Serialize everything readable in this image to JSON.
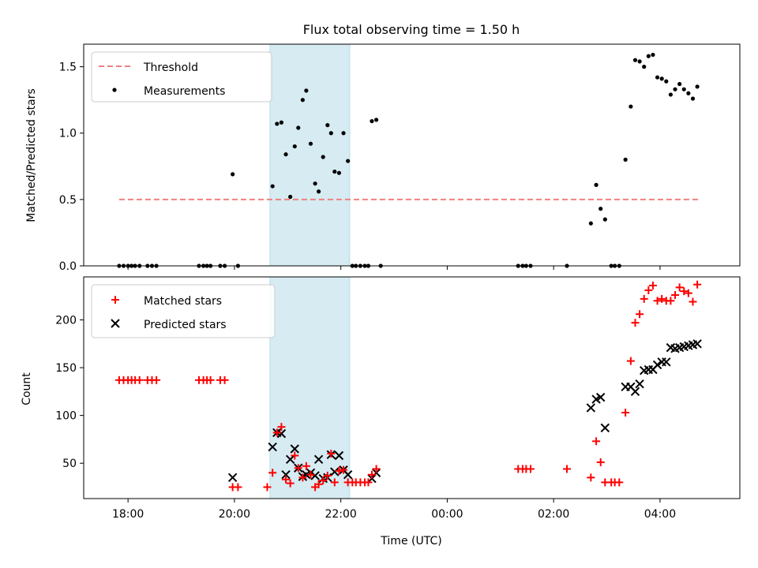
{
  "figure": {
    "title": "Flux total observing time = 1.50 h"
  },
  "chart_data": [
    {
      "type": "scatter",
      "ylabel": "Matched/Predicted stars",
      "xlabel": "",
      "xlim": [
        "17:10",
        "05:30"
      ],
      "ylim": [
        0,
        1.67
      ],
      "yticks": [
        "0.0",
        "0.5",
        "1.0",
        "1.5"
      ],
      "ytick_values": [
        0,
        0.5,
        1.0,
        1.5
      ],
      "grid": false,
      "legend_position": "upper-left",
      "shaded_span": {
        "x_start": "20:40",
        "x_end": "22:10",
        "color": "#add8e6"
      },
      "threshold": {
        "name": "Threshold",
        "value": 0.5,
        "x_start": "17:50",
        "x_end": "04:45",
        "color": "#f08080",
        "style": "dashed"
      },
      "measurements": {
        "name": "Measurements",
        "color": "#000000",
        "points": [
          [
            "17:50",
            0
          ],
          [
            "17:55",
            0
          ],
          [
            "18:00",
            0
          ],
          [
            "18:04",
            0
          ],
          [
            "18:08",
            0
          ],
          [
            "18:13",
            0
          ],
          [
            "18:22",
            0
          ],
          [
            "18:27",
            0
          ],
          [
            "18:32",
            0
          ],
          [
            "19:20",
            0
          ],
          [
            "19:25",
            0
          ],
          [
            "19:29",
            0
          ],
          [
            "19:33",
            0
          ],
          [
            "19:44",
            0
          ],
          [
            "19:49",
            0
          ],
          [
            "19:58",
            0.69
          ],
          [
            "20:04",
            0
          ],
          [
            "20:43",
            0.6
          ],
          [
            "20:48",
            1.07
          ],
          [
            "20:53",
            1.08
          ],
          [
            "20:58",
            0.84
          ],
          [
            "21:03",
            0.52
          ],
          [
            "21:08",
            0.9
          ],
          [
            "21:12",
            1.04
          ],
          [
            "21:17",
            1.25
          ],
          [
            "21:21",
            1.32
          ],
          [
            "21:26",
            0.92
          ],
          [
            "21:31",
            0.62
          ],
          [
            "21:35",
            0.56
          ],
          [
            "21:40",
            0.82
          ],
          [
            "21:45",
            1.06
          ],
          [
            "21:49",
            1.0
          ],
          [
            "21:53",
            0.71
          ],
          [
            "21:58",
            0.7
          ],
          [
            "22:03",
            1.0
          ],
          [
            "22:08",
            0.79
          ],
          [
            "22:13",
            0
          ],
          [
            "22:17",
            0
          ],
          [
            "22:22",
            0
          ],
          [
            "22:27",
            0
          ],
          [
            "22:31",
            0
          ],
          [
            "22:35",
            1.09
          ],
          [
            "22:40",
            1.1
          ],
          [
            "22:45",
            0
          ],
          [
            "01:20",
            0
          ],
          [
            "01:25",
            0
          ],
          [
            "01:29",
            0
          ],
          [
            "01:34",
            0
          ],
          [
            "02:15",
            0
          ],
          [
            "02:42",
            0.32
          ],
          [
            "02:48",
            0.61
          ],
          [
            "02:53",
            0.43
          ],
          [
            "02:58",
            0.35
          ],
          [
            "03:05",
            0
          ],
          [
            "03:09",
            0
          ],
          [
            "03:14",
            0
          ],
          [
            "03:21",
            0.8
          ],
          [
            "03:27",
            1.2
          ],
          [
            "03:32",
            1.55
          ],
          [
            "03:37",
            1.54
          ],
          [
            "03:42",
            1.5
          ],
          [
            "03:47",
            1.58
          ],
          [
            "03:52",
            1.59
          ],
          [
            "03:57",
            1.42
          ],
          [
            "04:02",
            1.41
          ],
          [
            "04:07",
            1.39
          ],
          [
            "04:12",
            1.29
          ],
          [
            "04:17",
            1.33
          ],
          [
            "04:22",
            1.37
          ],
          [
            "04:27",
            1.33
          ],
          [
            "04:32",
            1.3
          ],
          [
            "04:37",
            1.26
          ],
          [
            "04:42",
            1.35
          ]
        ]
      }
    },
    {
      "type": "scatter",
      "ylabel": "Count",
      "xlabel": "Time (UTC)",
      "xlim": [
        "17:10",
        "05:30"
      ],
      "ylim": [
        13,
        245
      ],
      "xticks": [
        "18:00",
        "20:00",
        "22:00",
        "00:00",
        "02:00",
        "04:00"
      ],
      "yticks": [
        "50",
        "100",
        "150",
        "200"
      ],
      "ytick_values": [
        50,
        100,
        150,
        200
      ],
      "grid": false,
      "legend_position": "upper-left",
      "shaded_span": {
        "x_start": "20:40",
        "x_end": "22:10",
        "color": "#add8e6"
      },
      "series": [
        {
          "name": "Matched stars",
          "marker": "plus",
          "color": "#ff0000",
          "points": [
            [
              "17:50",
              137
            ],
            [
              "17:55",
              137
            ],
            [
              "18:00",
              137
            ],
            [
              "18:04",
              137
            ],
            [
              "18:08",
              137
            ],
            [
              "18:13",
              137
            ],
            [
              "18:22",
              137
            ],
            [
              "18:27",
              137
            ],
            [
              "18:32",
              137
            ],
            [
              "19:20",
              137
            ],
            [
              "19:25",
              137
            ],
            [
              "19:29",
              137
            ],
            [
              "19:33",
              137
            ],
            [
              "19:44",
              137
            ],
            [
              "19:49",
              137
            ],
            [
              "19:58",
              25
            ],
            [
              "20:04",
              25
            ],
            [
              "20:37",
              25
            ],
            [
              "20:43",
              40
            ],
            [
              "20:48",
              82
            ],
            [
              "20:53",
              88
            ],
            [
              "20:58",
              33
            ],
            [
              "21:03",
              29
            ],
            [
              "21:08",
              58
            ],
            [
              "21:12",
              45
            ],
            [
              "21:17",
              35
            ],
            [
              "21:21",
              47
            ],
            [
              "21:26",
              38
            ],
            [
              "21:31",
              25
            ],
            [
              "21:35",
              28
            ],
            [
              "21:40",
              32
            ],
            [
              "21:45",
              37
            ],
            [
              "21:49",
              60
            ],
            [
              "21:53",
              30
            ],
            [
              "21:58",
              42
            ],
            [
              "22:03",
              43
            ],
            [
              "22:08",
              30
            ],
            [
              "22:13",
              30
            ],
            [
              "22:17",
              30
            ],
            [
              "22:22",
              30
            ],
            [
              "22:27",
              30
            ],
            [
              "22:31",
              30
            ],
            [
              "22:35",
              38
            ],
            [
              "22:40",
              44
            ],
            [
              "01:20",
              44
            ],
            [
              "01:25",
              44
            ],
            [
              "01:29",
              44
            ],
            [
              "01:34",
              44
            ],
            [
              "02:15",
              44
            ],
            [
              "02:42",
              35
            ],
            [
              "02:48",
              73
            ],
            [
              "02:53",
              51
            ],
            [
              "02:58",
              30
            ],
            [
              "03:05",
              30
            ],
            [
              "03:09",
              30
            ],
            [
              "03:14",
              30
            ],
            [
              "03:21",
              103
            ],
            [
              "03:27",
              157
            ],
            [
              "03:32",
              197
            ],
            [
              "03:37",
              206
            ],
            [
              "03:42",
              222
            ],
            [
              "03:47",
              231
            ],
            [
              "03:52",
              236
            ],
            [
              "03:57",
              220
            ],
            [
              "04:02",
              222
            ],
            [
              "04:07",
              220
            ],
            [
              "04:12",
              220
            ],
            [
              "04:17",
              226
            ],
            [
              "04:22",
              234
            ],
            [
              "04:27",
              230
            ],
            [
              "04:32",
              228
            ],
            [
              "04:37",
              219
            ],
            [
              "04:42",
              237
            ]
          ]
        },
        {
          "name": "Predicted stars",
          "marker": "x",
          "color": "#000000",
          "points": [
            [
              "19:58",
              35
            ],
            [
              "20:43",
              67
            ],
            [
              "20:48",
              82
            ],
            [
              "20:53",
              81
            ],
            [
              "20:58",
              38
            ],
            [
              "21:03",
              54
            ],
            [
              "21:08",
              65
            ],
            [
              "21:12",
              45
            ],
            [
              "21:17",
              36
            ],
            [
              "21:21",
              38
            ],
            [
              "21:26",
              40
            ],
            [
              "21:31",
              37
            ],
            [
              "21:35",
              54
            ],
            [
              "21:40",
              34
            ],
            [
              "21:45",
              35
            ],
            [
              "21:49",
              59
            ],
            [
              "21:53",
              41
            ],
            [
              "21:58",
              58
            ],
            [
              "22:03",
              43
            ],
            [
              "22:08",
              38
            ],
            [
              "22:35",
              34
            ],
            [
              "22:40",
              40
            ],
            [
              "02:42",
              108
            ],
            [
              "02:48",
              117
            ],
            [
              "02:53",
              119
            ],
            [
              "02:58",
              87
            ],
            [
              "03:21",
              130
            ],
            [
              "03:27",
              130
            ],
            [
              "03:32",
              125
            ],
            [
              "03:37",
              133
            ],
            [
              "03:42",
              147
            ],
            [
              "03:47",
              148
            ],
            [
              "03:52",
              148
            ],
            [
              "03:57",
              153
            ],
            [
              "04:02",
              156
            ],
            [
              "04:07",
              156
            ],
            [
              "04:12",
              171
            ],
            [
              "04:17",
              170
            ],
            [
              "04:22",
              171
            ],
            [
              "04:27",
              172
            ],
            [
              "04:32",
              173
            ],
            [
              "04:37",
              174
            ],
            [
              "04:42",
              175
            ]
          ]
        }
      ]
    }
  ]
}
